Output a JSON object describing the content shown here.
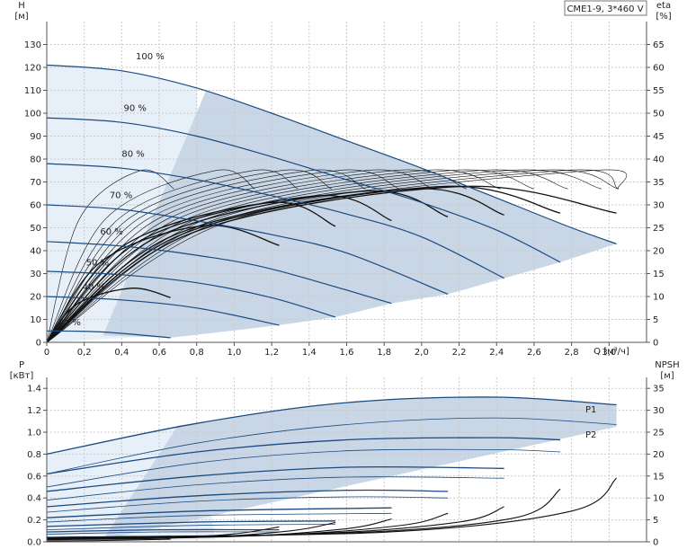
{
  "chart_data": [
    {
      "type": "line",
      "title": "CME1-9, 3*460 V",
      "ylabel": "H",
      "ylabel_unit": "[м]",
      "y2label": "eta",
      "y2label_unit": "[%]",
      "xlabel": "Q [м³/ч]",
      "xlim": [
        0,
        3.2
      ],
      "ylim": [
        0,
        140
      ],
      "y2lim": [
        0,
        70
      ],
      "x_ticks": [
        "0",
        "0,2",
        "0,4",
        "0,6",
        "0,8",
        "1,0",
        "1,2",
        "1,4",
        "1,6",
        "1,8",
        "2,0",
        "2,2",
        "2,4",
        "2,6",
        "2,8",
        "3,0"
      ],
      "y_ticks": [
        "0",
        "10",
        "20",
        "30",
        "40",
        "50",
        "60",
        "70",
        "80",
        "90",
        "100",
        "110",
        "120",
        "130"
      ],
      "y2_ticks": [
        "0",
        "5",
        "10",
        "15",
        "20",
        "25",
        "30",
        "35",
        "40",
        "45",
        "50",
        "55",
        "60",
        "65"
      ],
      "grid": true,
      "speed_labels": [
        "100 %",
        "90 %",
        "80 %",
        "70 %",
        "60 %",
        "50 %",
        "40 %",
        "21 %"
      ],
      "head_series": [
        {
          "speed": 100,
          "x": [
            0,
            0.4,
            0.8,
            1.2,
            1.6,
            2.0,
            2.4,
            2.8,
            3.04
          ],
          "values": [
            121,
            118.5,
            111,
            100,
            88,
            76,
            63,
            50,
            43
          ]
        },
        {
          "speed": 90,
          "x": [
            0,
            0.4,
            0.8,
            1.2,
            1.6,
            2.0,
            2.4,
            2.74
          ],
          "values": [
            98,
            96,
            90,
            81,
            71,
            61,
            49,
            35
          ]
        },
        {
          "speed": 80,
          "x": [
            0,
            0.4,
            0.8,
            1.2,
            1.6,
            2.0,
            2.44
          ],
          "values": [
            78,
            76,
            71,
            64,
            56,
            46,
            28
          ]
        },
        {
          "speed": 70,
          "x": [
            0,
            0.4,
            0.8,
            1.2,
            1.6,
            2.14
          ],
          "values": [
            60,
            58,
            53,
            47,
            39,
            21
          ]
        },
        {
          "speed": 60,
          "x": [
            0,
            0.4,
            0.8,
            1.2,
            1.84
          ],
          "values": [
            44,
            42,
            38,
            32,
            17
          ]
        },
        {
          "speed": 50,
          "x": [
            0,
            0.4,
            0.8,
            1.2,
            1.54
          ],
          "values": [
            31,
            29.5,
            26,
            19.5,
            11
          ]
        },
        {
          "speed": 40,
          "x": [
            0,
            0.4,
            0.8,
            1.24
          ],
          "values": [
            20,
            18.5,
            15,
            7.5
          ]
        },
        {
          "speed": 21,
          "x": [
            0,
            0.3,
            0.66
          ],
          "values": [
            5,
            4.5,
            2
          ]
        }
      ],
      "eta_series": [
        {
          "peak_x": 0.5,
          "peak_eta": 37.5,
          "end_x": 0.66
        },
        {
          "peak_x": 0.9,
          "peak_eta": 37.5,
          "end_x": 1.24
        },
        {
          "peak_x": 1.2,
          "peak_eta": 37.5,
          "end_x": 1.54
        },
        {
          "peak_x": 1.4,
          "peak_eta": 37.5,
          "end_x": 1.84
        },
        {
          "peak_x": 1.6,
          "peak_eta": 37.5,
          "end_x": 2.14
        },
        {
          "peak_x": 1.8,
          "peak_eta": 37.5,
          "end_x": 2.44
        },
        {
          "peak_x": 2.0,
          "peak_eta": 37.5,
          "end_x": 2.74
        },
        {
          "peak_x": 2.2,
          "peak_eta": 37.5,
          "end_x": 3.04
        }
      ],
      "eta_low_speed": [
        {
          "peak_x": 0.45,
          "peak_eta": 11.8,
          "end_x": 0.66
        },
        {
          "peak_x": 0.85,
          "peak_eta": 25.5,
          "end_x": 1.24
        },
        {
          "peak_x": 1.2,
          "peak_eta": 30.5,
          "end_x": 1.54
        },
        {
          "peak_x": 1.45,
          "peak_eta": 32.0,
          "end_x": 1.84
        },
        {
          "peak_x": 1.7,
          "peak_eta": 33.0,
          "end_x": 2.14
        },
        {
          "peak_x": 1.95,
          "peak_eta": 33.5,
          "end_x": 2.44
        },
        {
          "peak_x": 2.1,
          "peak_eta": 34.0,
          "end_x": 2.74
        },
        {
          "peak_x": 2.2,
          "peak_eta": 34.0,
          "end_x": 3.04
        }
      ],
      "colors": {
        "curve": "#1a4a80",
        "eta": "#111111",
        "area_dark": "#c8d6e6",
        "area_light": "#e7eff8",
        "grid": "#c9c9c9"
      }
    },
    {
      "type": "line",
      "ylabel": "P",
      "ylabel_unit": "[кВт]",
      "y2label": "NPSH",
      "y2label_unit": "[м]",
      "xlim": [
        0,
        3.2
      ],
      "ylim": [
        0,
        1.5
      ],
      "y2lim": [
        0,
        37.5
      ],
      "y_ticks": [
        "0.0",
        "0.2",
        "0.4",
        "0.6",
        "0.8",
        "1.0",
        "1.2",
        "1.4"
      ],
      "y2_ticks": [
        "0",
        "5",
        "10",
        "15",
        "20",
        "25",
        "30",
        "35"
      ],
      "grid": true,
      "series_labels": [
        "P1",
        "P2"
      ],
      "p1_series": [
        {
          "x": [
            0,
            0.8,
            1.6,
            2.4,
            3.04
          ],
          "values": [
            0.8,
            1.08,
            1.27,
            1.32,
            1.25
          ]
        },
        {
          "x": [
            0,
            0.8,
            1.6,
            2.4,
            2.74
          ],
          "values": [
            0.62,
            0.82,
            0.93,
            0.95,
            0.93
          ]
        },
        {
          "x": [
            0,
            0.8,
            1.6,
            2.44
          ],
          "values": [
            0.46,
            0.6,
            0.68,
            0.67
          ]
        },
        {
          "x": [
            0,
            0.8,
            1.6,
            2.14
          ],
          "values": [
            0.32,
            0.42,
            0.47,
            0.46
          ]
        },
        {
          "x": [
            0,
            0.8,
            1.84
          ],
          "values": [
            0.22,
            0.28,
            0.31
          ]
        },
        {
          "x": [
            0,
            0.8,
            1.54
          ],
          "values": [
            0.14,
            0.18,
            0.19
          ]
        },
        {
          "x": [
            0,
            0.6,
            1.24
          ],
          "values": [
            0.09,
            0.11,
            0.11
          ]
        },
        {
          "x": [
            0,
            0.66
          ],
          "values": [
            0.04,
            0.05
          ]
        }
      ],
      "p2_series": [
        {
          "x": [
            0,
            0.8,
            1.6,
            2.4,
            3.04
          ],
          "values": [
            0.62,
            0.9,
            1.07,
            1.13,
            1.07
          ]
        },
        {
          "x": [
            0,
            0.8,
            1.6,
            2.4,
            2.74
          ],
          "values": [
            0.5,
            0.72,
            0.83,
            0.84,
            0.82
          ]
        },
        {
          "x": [
            0,
            0.8,
            1.6,
            2.44
          ],
          "values": [
            0.38,
            0.52,
            0.59,
            0.58
          ]
        },
        {
          "x": [
            0,
            0.8,
            1.6,
            2.14
          ],
          "values": [
            0.27,
            0.37,
            0.41,
            0.4
          ]
        },
        {
          "x": [
            0,
            0.8,
            1.84
          ],
          "values": [
            0.18,
            0.24,
            0.26
          ]
        },
        {
          "x": [
            0,
            0.8,
            1.54
          ],
          "values": [
            0.11,
            0.15,
            0.16
          ]
        },
        {
          "x": [
            0,
            0.6,
            1.24
          ],
          "values": [
            0.07,
            0.09,
            0.09
          ]
        },
        {
          "x": [
            0,
            0.66
          ],
          "values": [
            0.03,
            0.04
          ]
        }
      ],
      "npsh_series": [
        {
          "x": [
            0,
            0.3,
            0.66
          ],
          "values": [
            0.2,
            0.3,
            0.6
          ]
        },
        {
          "x": [
            0,
            0.6,
            1.0,
            1.24
          ],
          "values": [
            0.5,
            0.8,
            1.8,
            3.4
          ]
        },
        {
          "x": [
            0,
            0.8,
            1.3,
            1.54
          ],
          "values": [
            0.6,
            1.0,
            2.5,
            4.4
          ]
        },
        {
          "x": [
            0,
            1.0,
            1.6,
            1.84
          ],
          "values": [
            0.7,
            1.2,
            3.0,
            5.2
          ]
        },
        {
          "x": [
            0,
            1.2,
            1.9,
            2.14
          ],
          "values": [
            0.8,
            1.5,
            3.8,
            6.5
          ]
        },
        {
          "x": [
            0,
            1.4,
            2.2,
            2.44
          ],
          "values": [
            0.9,
            1.8,
            4.5,
            8.0
          ]
        },
        {
          "x": [
            0,
            1.6,
            2.5,
            2.74
          ],
          "values": [
            1.0,
            2.0,
            5.5,
            12.0
          ]
        },
        {
          "x": [
            0,
            1.8,
            2.8,
            3.04
          ],
          "values": [
            1.0,
            2.2,
            7.0,
            14.5
          ]
        }
      ]
    }
  ]
}
